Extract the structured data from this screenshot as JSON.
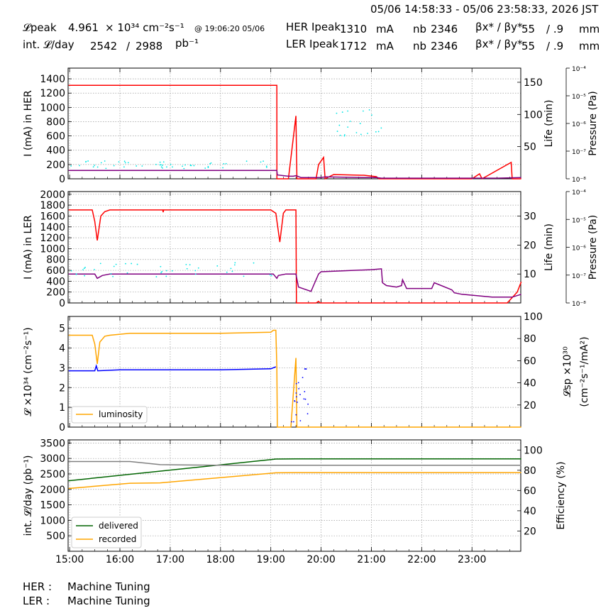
{
  "header": {
    "time_range": "05/06 14:58:33 - 05/06 23:58:33, 2026 JST",
    "lpeak_label": "𝓛peak",
    "lpeak_value": "4.961",
    "lpeak_unit": "× 10³⁴ cm⁻²s⁻¹",
    "lpeak_time": "@ 19:06:20 05/06",
    "intl_label": "int. 𝓛/day",
    "intl_recorded": "2542",
    "intl_sep": "/",
    "intl_delivered": "2988",
    "intl_unit": "pb⁻¹",
    "her_label": "HER Ipeak",
    "her_value": "1310",
    "her_unit": "mA",
    "ler_label": "LER Ipeak",
    "ler_value": "1712",
    "ler_unit": "mA",
    "nb_label": "nb",
    "her_nb": "2346",
    "ler_nb": "2346",
    "beta_label": "βx* / βy*",
    "her_beta_x": "55",
    "her_beta_y": "/ .9",
    "ler_beta_x": "55",
    "ler_beta_y": "/ .9",
    "beta_unit": "mm"
  },
  "status": {
    "her_label": "HER :",
    "her_state": "Machine Tuning",
    "ler_label": "LER :",
    "ler_state": "Machine Tuning"
  },
  "colors": {
    "current": "#ff0000",
    "life": "#800080",
    "pressure": "#00e5e5",
    "luminosity": "#ffa500",
    "specific": "#0000ff",
    "delivered": "#006400",
    "recorded": "#ffa500",
    "efficiency": "#808080",
    "grid": "#9a9a9a"
  },
  "chart_data": [
    {
      "type": "line",
      "id": "her",
      "ylabel": "I (mA) in HER",
      "y2label": "Life (min)",
      "y3label": "Pressure (Pa)",
      "ylim": [
        0,
        1550
      ],
      "yticks": [
        0,
        200,
        400,
        600,
        800,
        1000,
        1200,
        1400
      ],
      "y2lim": [
        0,
        172
      ],
      "y2ticks": [
        50,
        100,
        150
      ],
      "y3ticks": [
        "10⁻⁸",
        "10⁻⁷",
        "10⁻⁶",
        "10⁻⁵",
        "10⁻⁴"
      ],
      "grid": true,
      "series": [
        {
          "role": "current",
          "x": [
            14.98,
            19.12,
            19.121,
            19.35,
            19.5,
            19.52,
            19.55,
            19.9,
            19.95,
            20.05,
            20.08,
            20.25,
            20.8,
            20.85,
            21.1,
            21.15,
            23.0,
            23.15,
            23.2,
            23.78,
            23.8,
            23.98
          ],
          "y": [
            1310,
            1310,
            0,
            0,
            880,
            0,
            0,
            0,
            200,
            300,
            0,
            60,
            50,
            50,
            30,
            0,
            0,
            70,
            0,
            230,
            0,
            0
          ]
        },
        {
          "role": "life",
          "x": [
            14.98,
            19.12,
            19.13,
            19.35,
            19.45,
            19.5,
            19.6,
            19.98,
            20.1,
            20.8,
            21.1,
            21.2,
            21.5,
            22.5,
            23.5,
            23.98
          ],
          "y": [
            13,
            13,
            6,
            4,
            4,
            5,
            2,
            2,
            3,
            2,
            2,
            1,
            1,
            1,
            1,
            2
          ]
        },
        {
          "role": "pressure",
          "points": 70
        }
      ]
    },
    {
      "type": "line",
      "id": "ler",
      "ylabel": "I (mA) in LER",
      "y2label": "Life (min)",
      "y3label": "Pressure (Pa)",
      "ylim": [
        0,
        2050
      ],
      "yticks": [
        0,
        200,
        400,
        600,
        800,
        1000,
        1200,
        1400,
        1600,
        1800,
        2000
      ],
      "y2lim": [
        0,
        38.5
      ],
      "y2ticks": [
        10,
        20,
        30
      ],
      "y3ticks": [
        "10⁻⁸",
        "10⁻⁷",
        "10⁻⁶",
        "10⁻⁵",
        "10⁻⁴"
      ],
      "grid": true,
      "series": [
        {
          "role": "current",
          "x": [
            14.98,
            15.45,
            15.5,
            15.55,
            15.62,
            15.7,
            15.8,
            16.2,
            16.85,
            16.86,
            16.87,
            18.0,
            19.0,
            19.1,
            19.18,
            19.25,
            19.3,
            19.45,
            19.5,
            19.51,
            19.9,
            19.95,
            19.98,
            23.7,
            23.9,
            23.98
          ],
          "y": [
            1712,
            1712,
            1500,
            1150,
            1600,
            1680,
            1712,
            1712,
            1712,
            1670,
            1712,
            1712,
            1712,
            1650,
            1120,
            1650,
            1712,
            1712,
            1712,
            0,
            0,
            30,
            0,
            0,
            200,
            390
          ]
        },
        {
          "role": "life",
          "x": [
            14.98,
            15.5,
            15.55,
            15.65,
            15.8,
            16.2,
            19.05,
            19.12,
            19.15,
            19.3,
            19.5,
            19.55,
            19.8,
            19.85,
            19.95,
            20.0,
            20.3,
            21.0,
            21.2,
            21.22,
            21.3,
            21.5,
            21.6,
            21.62,
            21.7,
            22.2,
            22.25,
            22.6,
            22.65,
            22.8,
            23.4,
            23.8,
            23.98
          ],
          "y": [
            10,
            10,
            8.5,
            9.5,
            10,
            10,
            10,
            8.5,
            9.5,
            10,
            10,
            5.5,
            4,
            6,
            10,
            10.8,
            11,
            11.5,
            11.8,
            7,
            6,
            5.5,
            6,
            8,
            5,
            5,
            7,
            4.5,
            3.5,
            3,
            2,
            2,
            3
          ]
        },
        {
          "role": "pressure",
          "points": 40
        }
      ]
    },
    {
      "type": "line",
      "id": "lumi",
      "ylabel": "𝓛 ×10³⁴ (cm⁻²s⁻¹)",
      "y2label": "𝓛sp ×10³⁰ (cm⁻²s⁻¹/mA²)",
      "ylim": [
        0,
        5.6
      ],
      "yticks": [
        0,
        1,
        2,
        3,
        4,
        5
      ],
      "y2lim": [
        0,
        100
      ],
      "y2ticks": [
        20,
        40,
        60,
        80,
        100
      ],
      "grid": true,
      "legend": "lower-left",
      "series": [
        {
          "name": "luminosity",
          "role": "luminosity",
          "x": [
            14.98,
            15.45,
            15.5,
            15.55,
            15.6,
            15.7,
            15.8,
            16.2,
            18.0,
            19.0,
            19.05,
            19.1,
            19.12,
            19.13,
            19.4,
            19.5,
            19.52,
            23.98
          ],
          "y": [
            4.65,
            4.65,
            4.2,
            3.2,
            4.3,
            4.6,
            4.65,
            4.75,
            4.75,
            4.8,
            4.9,
            4.9,
            3.0,
            0,
            0,
            3.5,
            0,
            0
          ]
        },
        {
          "role": "specific",
          "x": [
            14.98,
            15.5,
            15.53,
            15.56,
            16.0,
            17.0,
            18.0,
            19.0,
            19.1
          ],
          "y": [
            2.85,
            2.85,
            3.1,
            2.85,
            2.9,
            2.9,
            2.9,
            2.95,
            3.05
          ]
        }
      ]
    },
    {
      "type": "line",
      "id": "intlumi",
      "ylabel": "int. 𝓛/day (pb⁻¹)",
      "y2label": "Efficiency (%)",
      "ylim": [
        0,
        3600
      ],
      "yticks": [
        500,
        1000,
        1500,
        2000,
        2500,
        3000,
        3500
      ],
      "y2lim": [
        0,
        110
      ],
      "y2ticks": [
        20,
        40,
        60,
        80,
        100
      ],
      "grid": true,
      "legend": "lower-left",
      "xlabel": "",
      "xticks": [
        "15:00",
        "16:00",
        "17:00",
        "18:00",
        "19:00",
        "20:00",
        "21:00",
        "22:00",
        "23:00"
      ],
      "xlim": [
        14.97,
        23.97
      ],
      "series": [
        {
          "name": "delivered",
          "role": "delivered",
          "x": [
            14.98,
            19.1,
            19.5,
            23.98
          ],
          "y": [
            2280,
            2980,
            2988,
            2988
          ]
        },
        {
          "name": "recorded",
          "role": "recorded",
          "x": [
            14.98,
            16.2,
            16.8,
            19.1,
            19.5,
            23.98
          ],
          "y": [
            2030,
            2200,
            2210,
            2535,
            2542,
            2542
          ]
        },
        {
          "role": "efficiency",
          "x": [
            14.98,
            16.2,
            16.8,
            18.0,
            23.98
          ],
          "y": [
            2900,
            2900,
            2800,
            2780,
            2780
          ]
        }
      ]
    }
  ]
}
